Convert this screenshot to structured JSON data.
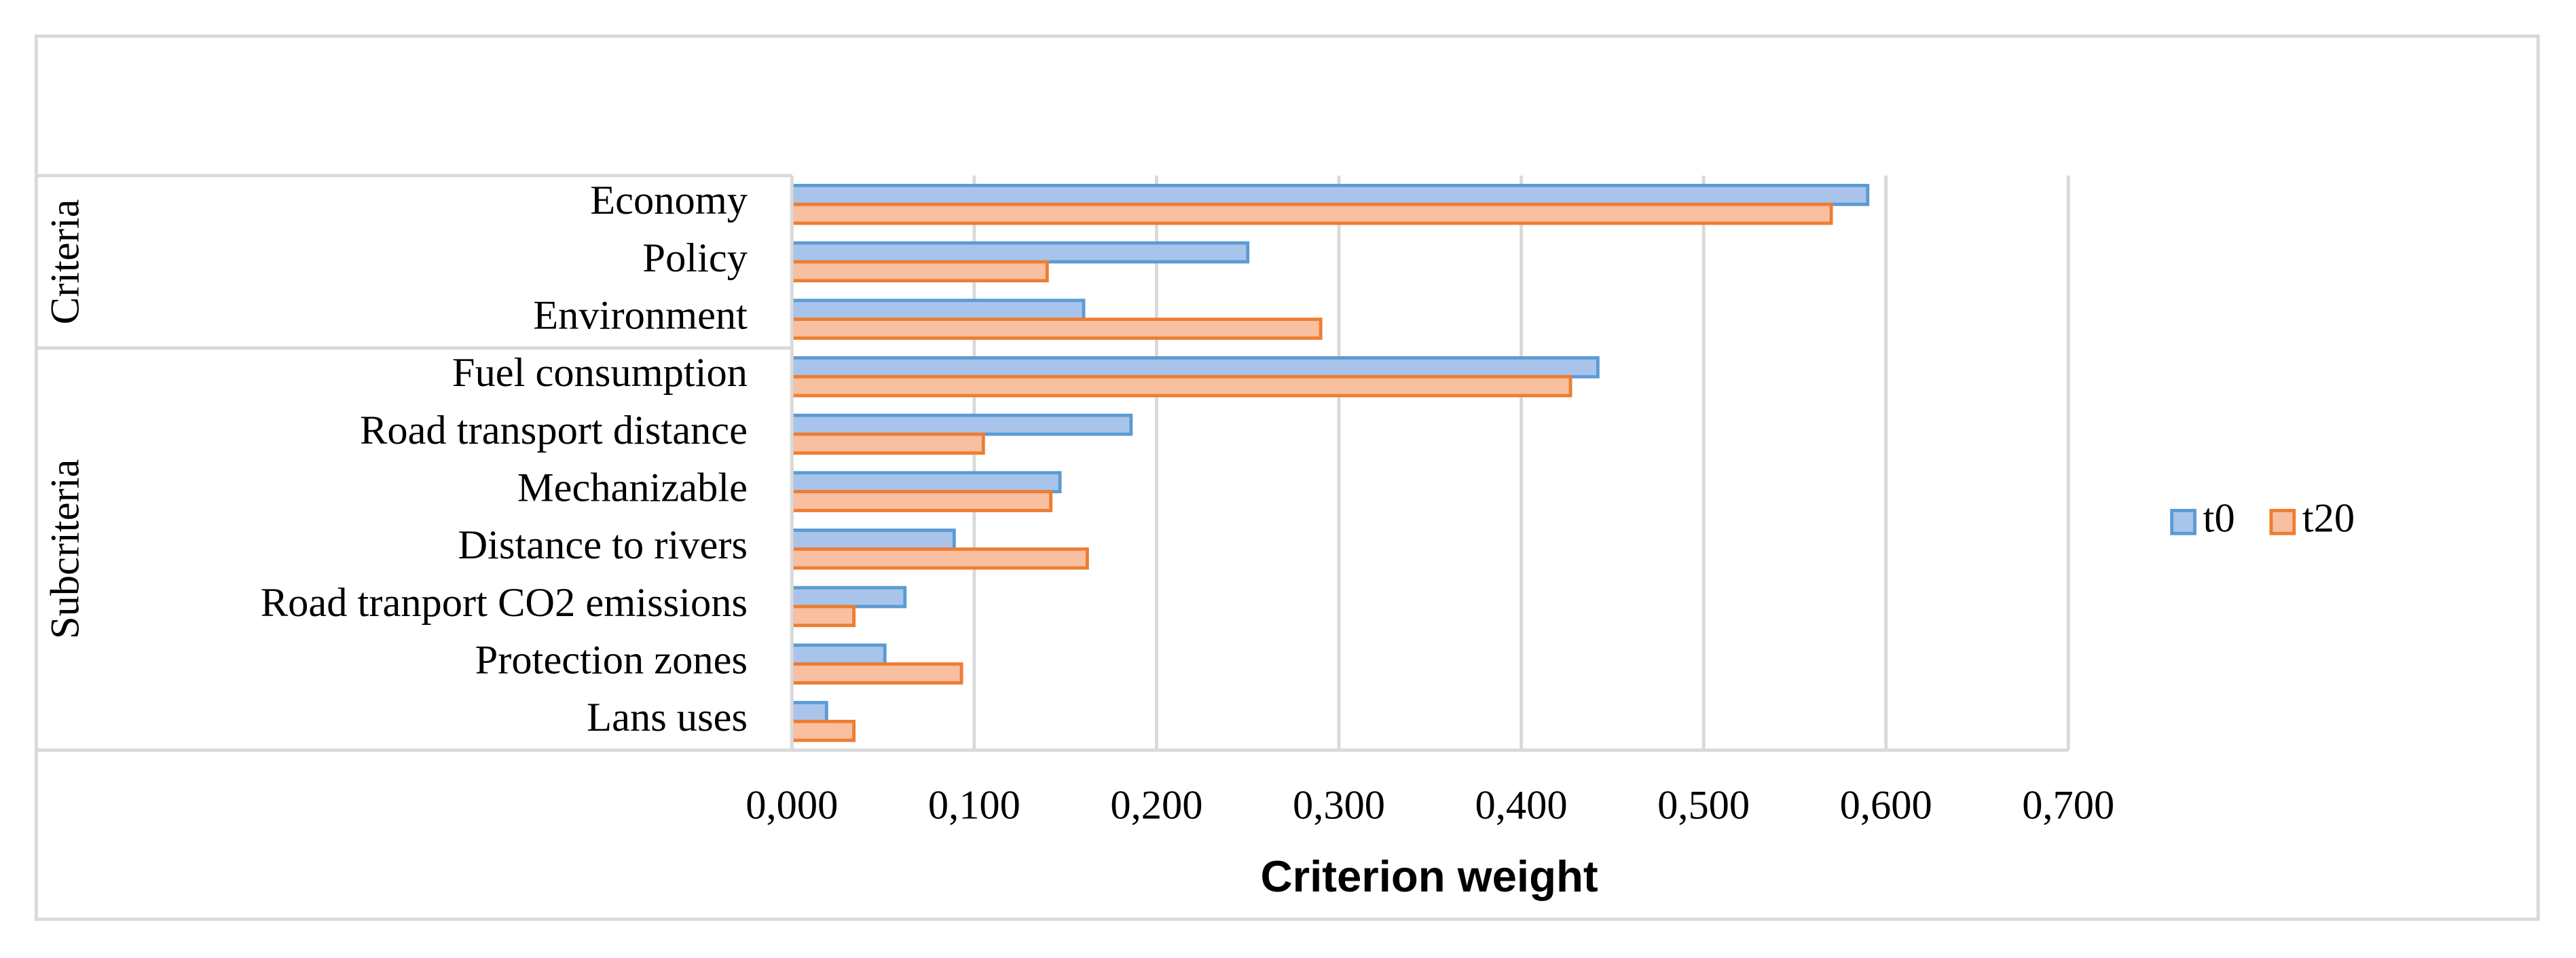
{
  "chart_data": {
    "type": "barh",
    "xlabel": "Criterion weight",
    "groups": [
      {
        "name": "Criteria",
        "categories": [
          "Economy",
          "Policy",
          "Environment"
        ]
      },
      {
        "name": "Subcriteria",
        "categories": [
          "Fuel consumption",
          "Road transport distance",
          "Mechanizable",
          "Distance to rivers",
          "Road tranport CO2 emissions",
          "Protection zones",
          "Lans uses"
        ]
      }
    ],
    "series": [
      {
        "name": "t0",
        "color": "#a9c4eb",
        "edgecolor": "#5b9bd5",
        "values": [
          0.59,
          0.25,
          0.16,
          0.442,
          0.186,
          0.147,
          0.089,
          0.062,
          0.051,
          0.019
        ]
      },
      {
        "name": "t20",
        "color": "#f8bfa0",
        "edgecolor": "#ed7d31",
        "values": [
          0.57,
          0.14,
          0.29,
          0.427,
          0.105,
          0.142,
          0.162,
          0.034,
          0.093,
          0.034
        ]
      }
    ],
    "xlim": [
      0,
      0.7
    ],
    "xticks": [
      {
        "value": 0,
        "label": "0,000"
      },
      {
        "value": 0.1,
        "label": "0,100"
      },
      {
        "value": 0.2,
        "label": "0,200"
      },
      {
        "value": 0.3,
        "label": "0,300"
      },
      {
        "value": 0.4,
        "label": "0,400"
      },
      {
        "value": 0.5,
        "label": "0,500"
      },
      {
        "value": 0.6,
        "label": "0,600"
      },
      {
        "value": 0.7,
        "label": "0,700"
      }
    ],
    "grid": true,
    "legend": "right"
  }
}
